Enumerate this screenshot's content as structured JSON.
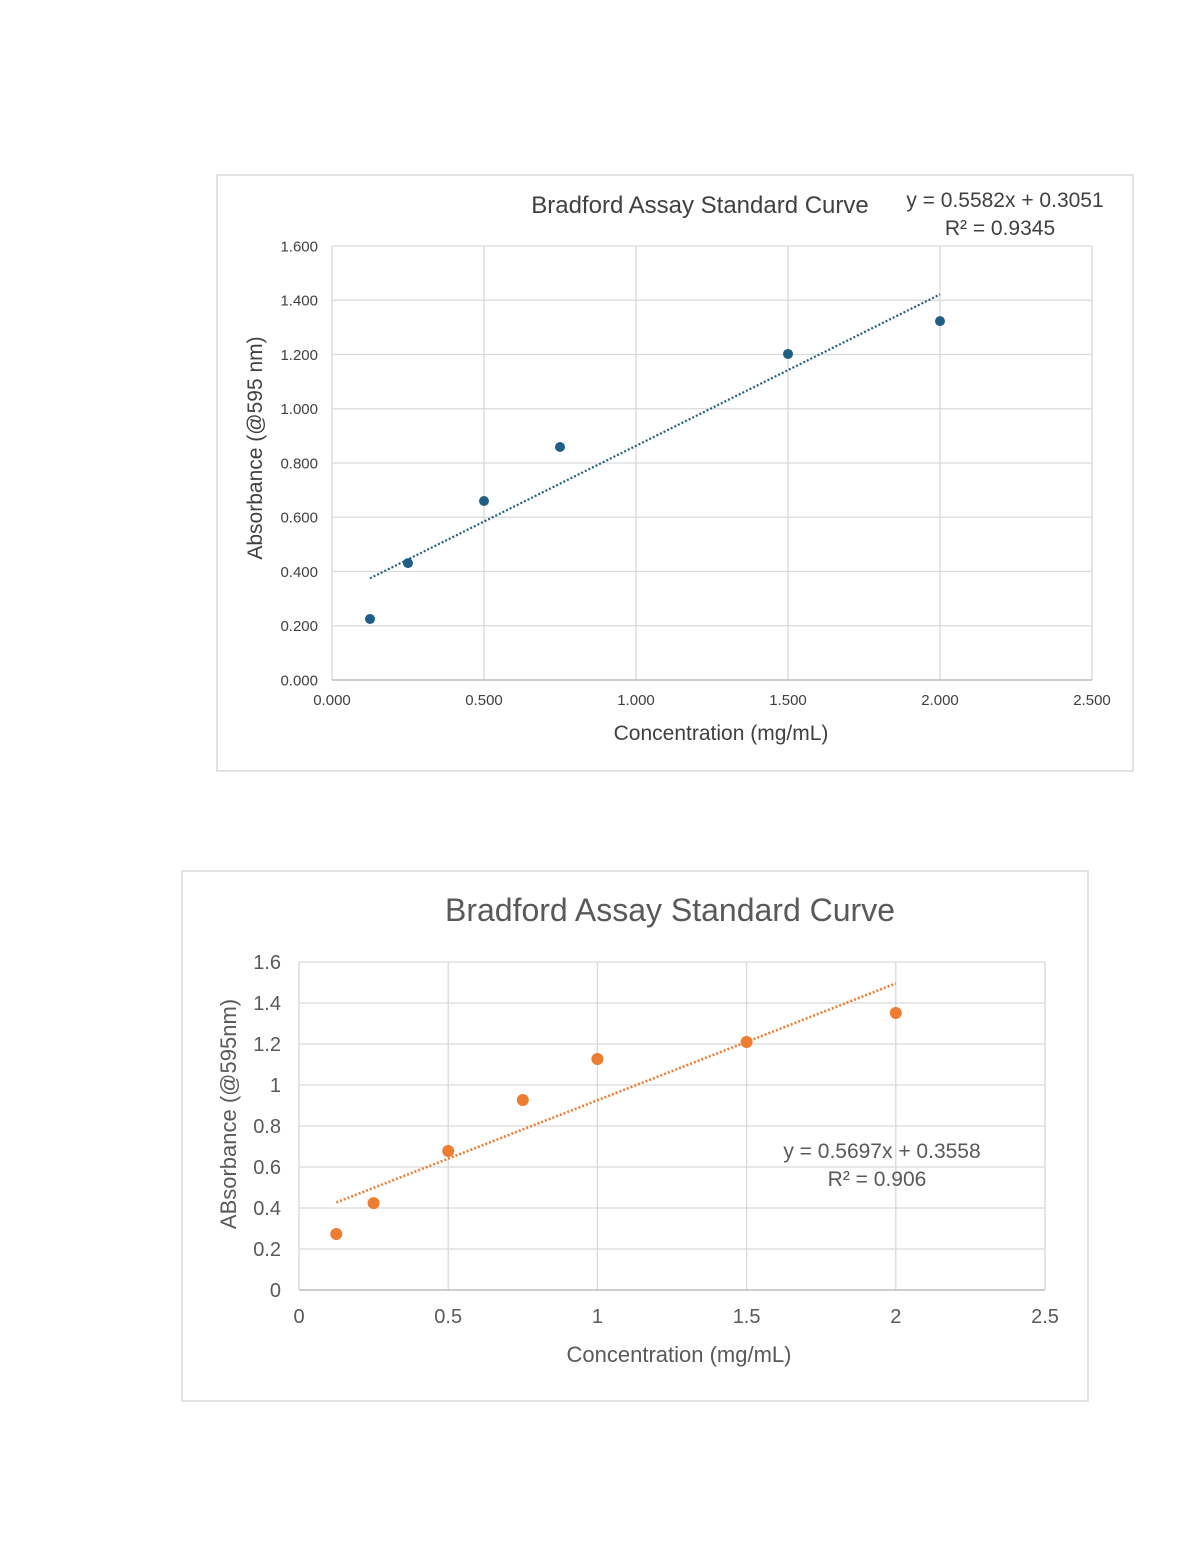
{
  "chart_data": [
    {
      "type": "scatter",
      "title": "Bradford Assay Standard Curve",
      "xlabel": "Concentration (mg/mL)",
      "ylabel": "Absorbance (@595 nm)",
      "xlim": [
        0,
        2.5
      ],
      "ylim": [
        0,
        1.6
      ],
      "x_ticks": [
        "0.000",
        "0.500",
        "1.000",
        "1.500",
        "2.000",
        "2.500"
      ],
      "y_ticks": [
        "0.000",
        "0.200",
        "0.400",
        "0.600",
        "0.800",
        "1.000",
        "1.200",
        "1.400",
        "1.600"
      ],
      "grid": true,
      "legend": "none",
      "color": "#1f5f85",
      "x": [
        0.125,
        0.25,
        0.5,
        0.75,
        1.5,
        2.0
      ],
      "y": [
        0.225,
        0.431,
        0.66,
        0.859,
        1.202,
        1.323
      ],
      "trendline": {
        "type": "linear",
        "slope": 0.5582,
        "intercept": 0.3051,
        "x_range": [
          0.125,
          2.0
        ],
        "style": "dotted"
      },
      "equation": "y = 0.5582x + 0.3051",
      "r_squared": "R² = 0.9345"
    },
    {
      "type": "scatter",
      "title": "Bradford Assay Standard Curve",
      "xlabel": "Concentration (mg/mL)",
      "ylabel": "ABsorbance (@595nm)",
      "xlim": [
        0,
        2.5
      ],
      "ylim": [
        0,
        1.6
      ],
      "x_ticks": [
        "0",
        "0.5",
        "1",
        "1.5",
        "2",
        "2.5"
      ],
      "y_ticks": [
        "0",
        "0.2",
        "0.4",
        "0.6",
        "0.8",
        "1",
        "1.2",
        "1.4",
        "1.6"
      ],
      "grid": true,
      "legend": "none",
      "color": "#ed7d31",
      "x": [
        0.125,
        0.25,
        0.5,
        0.75,
        1.0,
        1.5,
        2.0
      ],
      "y": [
        0.273,
        0.424,
        0.678,
        0.927,
        1.127,
        1.21,
        1.351
      ],
      "trendline": {
        "type": "linear",
        "slope": 0.5697,
        "intercept": 0.3558,
        "x_range": [
          0.125,
          2.0
        ],
        "style": "dotted"
      },
      "equation": "y = 0.5697x + 0.3558",
      "r_squared": "R² = 0.906"
    }
  ]
}
